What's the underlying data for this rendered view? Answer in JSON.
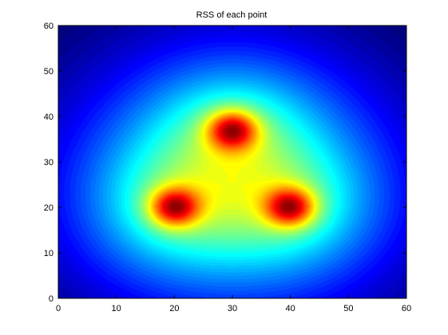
{
  "chart_data": {
    "type": "heatmap",
    "title": "RSS of each point",
    "xlabel": "",
    "ylabel": "",
    "xlim": [
      0,
      60
    ],
    "ylim": [
      0,
      60
    ],
    "x_ticks": [
      "0",
      "10",
      "20",
      "30",
      "40",
      "50",
      "60"
    ],
    "y_ticks": [
      "0",
      "10",
      "20",
      "30",
      "40",
      "50",
      "60"
    ],
    "colormap": "jet",
    "grid": false,
    "peaks": [
      {
        "x": 20,
        "y": 20
      },
      {
        "x": 40,
        "y": 20
      },
      {
        "x": 30,
        "y": 37
      }
    ],
    "colors": {
      "axis": "#000000",
      "background": "#ffffff"
    }
  }
}
